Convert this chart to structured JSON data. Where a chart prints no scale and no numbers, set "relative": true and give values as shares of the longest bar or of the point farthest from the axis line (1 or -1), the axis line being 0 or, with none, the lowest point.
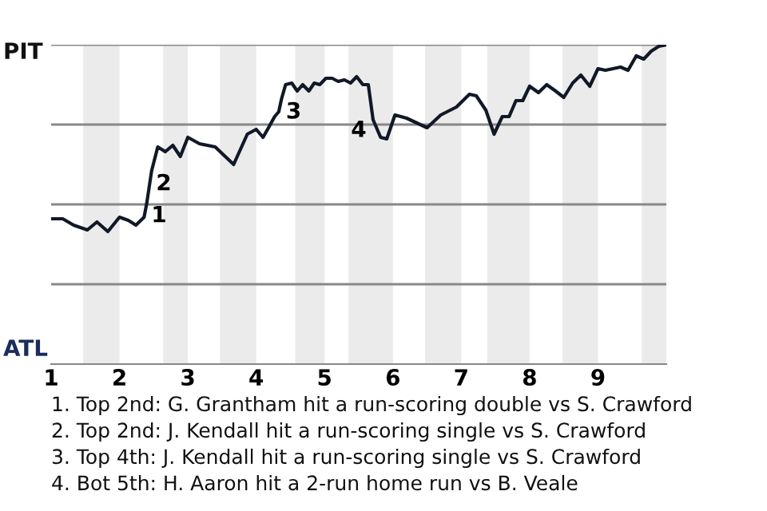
{
  "chart_data": {
    "type": "line",
    "relative": true,
    "xlim": [
      1,
      10
    ],
    "xticks": [
      1,
      2,
      3,
      4,
      5,
      6,
      7,
      8,
      9
    ],
    "bands": [
      {
        "axis": "x",
        "from": 1.47,
        "to": 2,
        "color": "#ebebeb"
      },
      {
        "axis": "x",
        "from": 2.64,
        "to": 3,
        "color": "#ebebeb"
      },
      {
        "axis": "x",
        "from": 3.47,
        "to": 4,
        "color": "#ebebeb"
      },
      {
        "axis": "x",
        "from": 4.57,
        "to": 5,
        "color": "#ebebeb"
      },
      {
        "axis": "x",
        "from": 5.35,
        "to": 6,
        "color": "#ebebeb"
      },
      {
        "axis": "x",
        "from": 6.47,
        "to": 7,
        "color": "#ebebeb"
      },
      {
        "axis": "x",
        "from": 7.38,
        "to": 8,
        "color": "#ebebeb"
      },
      {
        "axis": "x",
        "from": 8.48,
        "to": 9,
        "color": "#ebebeb"
      },
      {
        "axis": "x",
        "from": 9.64,
        "to": 10,
        "color": "#ebebeb"
      }
    ],
    "ref_lines": [
      {
        "axis": "y",
        "value": 0.25,
        "color": "#888888"
      },
      {
        "axis": "y",
        "value": 0.5,
        "color": "#888888"
      },
      {
        "axis": "y",
        "value": 0.75,
        "color": "#888888"
      },
      {
        "axis": "y",
        "value": 1,
        "color": "#888888"
      }
    ],
    "series": [
      {
        "color": "#111827",
        "x": [
          1,
          1.17,
          1.33,
          1.53,
          1.67,
          1.83,
          2,
          2.13,
          2.24,
          2.36,
          2.4,
          2.47,
          2.56,
          2.67,
          2.78,
          2.89,
          3,
          3.17,
          3.4,
          3.67,
          3.87,
          4,
          4.1,
          4.18,
          4.27,
          4.33,
          4.37,
          4.43,
          4.52,
          4.6,
          4.68,
          4.77,
          4.85,
          4.93,
          5.02,
          5.11,
          5.2,
          5.29,
          5.38,
          5.47,
          5.56,
          5.64,
          5.71,
          5.82,
          5.91,
          6.03,
          6.2,
          6.5,
          6.7,
          6.93,
          7.12,
          7.22,
          7.36,
          7.48,
          7.6,
          7.7,
          7.8,
          7.9,
          8,
          8.13,
          8.25,
          8.38,
          8.5,
          8.63,
          8.75,
          8.88,
          9,
          9.11,
          9.22,
          9.33,
          9.44,
          9.56,
          9.67,
          9.78,
          9.89,
          10
        ],
        "values": [
          0.455,
          0.455,
          0.435,
          0.42,
          0.445,
          0.415,
          0.46,
          0.45,
          0.435,
          0.46,
          0.505,
          0.605,
          0.68,
          0.665,
          0.685,
          0.65,
          0.71,
          0.69,
          0.68,
          0.625,
          0.72,
          0.735,
          0.71,
          0.74,
          0.775,
          0.79,
          0.83,
          0.875,
          0.88,
          0.855,
          0.875,
          0.855,
          0.88,
          0.875,
          0.895,
          0.895,
          0.885,
          0.89,
          0.88,
          0.9,
          0.875,
          0.875,
          0.765,
          0.71,
          0.705,
          0.78,
          0.77,
          0.74,
          0.78,
          0.805,
          0.845,
          0.84,
          0.795,
          0.72,
          0.775,
          0.775,
          0.825,
          0.825,
          0.87,
          0.85,
          0.875,
          0.855,
          0.835,
          0.88,
          0.905,
          0.87,
          0.925,
          0.92,
          0.925,
          0.93,
          0.92,
          0.965,
          0.955,
          0.98,
          0.995,
          1.0
        ]
      }
    ],
    "annotations": [
      "PIT",
      "ATL",
      {
        "text": "1",
        "x": 2.4,
        "y": 0.505
      },
      {
        "text": "2",
        "x": 2.47,
        "y": 0.605
      },
      {
        "text": "3",
        "x": 4.37,
        "y": 0.83
      },
      {
        "text": "4",
        "x": 5.71,
        "y": 0.765
      },
      "1. Top 2nd: G. Grantham hit a run-scoring double vs S. Crawford",
      "2. Top 2nd: J. Kendall hit a run-scoring single vs S. Crawford",
      "3. Top 4th: J. Kendall hit a run-scoring single vs S. Crawford",
      "4. Bot 5th: H. Aaron hit a 2-run home run vs B. Veale"
    ],
    "grid": false,
    "marker": "none",
    "line_style": "solid",
    "tick_labels": "x"
  }
}
